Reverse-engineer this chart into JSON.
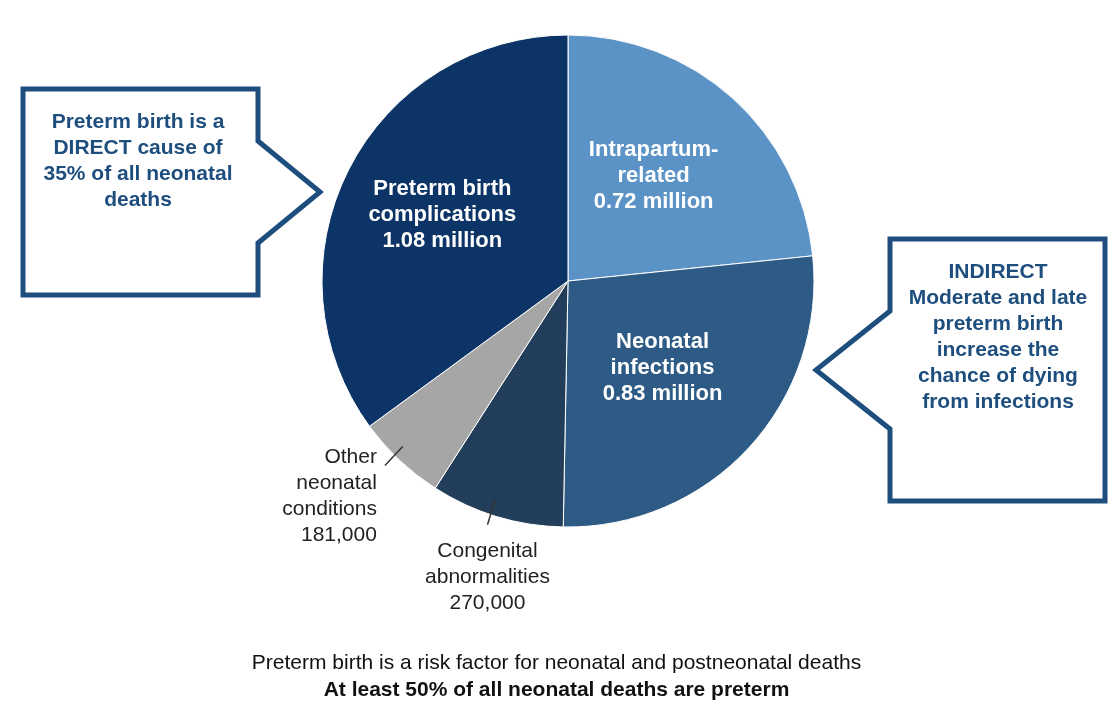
{
  "chart_data": {
    "type": "pie",
    "categories": [
      "Intrapartum-related",
      "Neonatal infections",
      "Congenital abnormalities",
      "Other neonatal conditions",
      "Preterm birth complications"
    ],
    "values": [
      720000,
      830000,
      270000,
      181000,
      1080000
    ],
    "value_labels": [
      "0.72 million",
      "0.83 million",
      "270,000",
      "181,000",
      "1.08 million"
    ],
    "colors": [
      "#5b93c7",
      "#2e5b85",
      "#233e5a",
      "#a6a6a6",
      "#0d3466"
    ],
    "annotations": [
      "Preterm birth is a DIRECT cause of 35% of all neonatal deaths",
      "INDIRECT Moderate and late preterm birth increase the chance of dying from infections",
      "Preterm birth is a risk factor for neonatal and postneonatal deaths",
      "At least 50% of all neonatal deaths are preterm"
    ]
  }
}
